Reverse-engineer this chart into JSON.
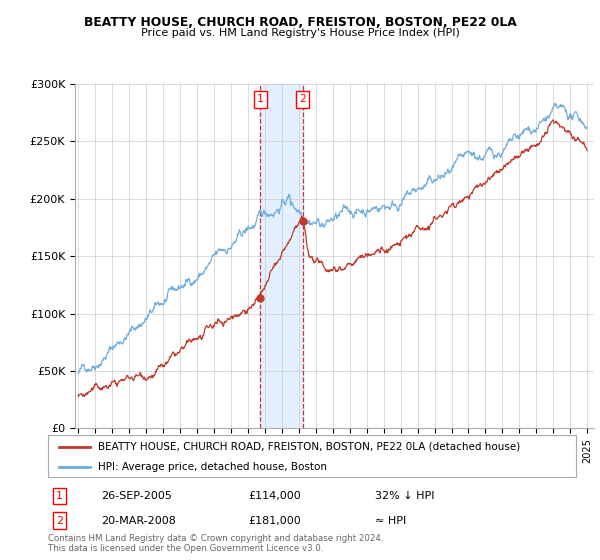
{
  "title1": "BEATTY HOUSE, CHURCH ROAD, FREISTON, BOSTON, PE22 0LA",
  "title2": "Price paid vs. HM Land Registry's House Price Index (HPI)",
  "ylim": [
    0,
    300000
  ],
  "yticks": [
    0,
    50000,
    100000,
    150000,
    200000,
    250000,
    300000
  ],
  "ytick_labels": [
    "£0",
    "£50K",
    "£100K",
    "£150K",
    "£200K",
    "£250K",
    "£300K"
  ],
  "line_red_color": "#c0392b",
  "line_blue_color": "#6aabdc",
  "legend_line1_label": "BEATTY HOUSE, CHURCH ROAD, FREISTON, BOSTON, PE22 0LA (detached house)",
  "legend_line2_label": "HPI: Average price, detached house, Boston",
  "annotation1_date": "26-SEP-2005",
  "annotation1_price": "£114,000",
  "annotation1_hpi": "32% ↓ HPI",
  "annotation2_date": "20-MAR-2008",
  "annotation2_price": "£181,000",
  "annotation2_hpi": "≈ HPI",
  "footer": "Contains HM Land Registry data © Crown copyright and database right 2024.\nThis data is licensed under the Open Government Licence v3.0.",
  "marker1_x": 2005.73,
  "marker1_y": 114000,
  "marker2_x": 2008.22,
  "marker2_y": 181000,
  "shade_x1": 2005.73,
  "shade_x2": 2008.22,
  "xmin": 1994.8,
  "xmax": 2025.4
}
